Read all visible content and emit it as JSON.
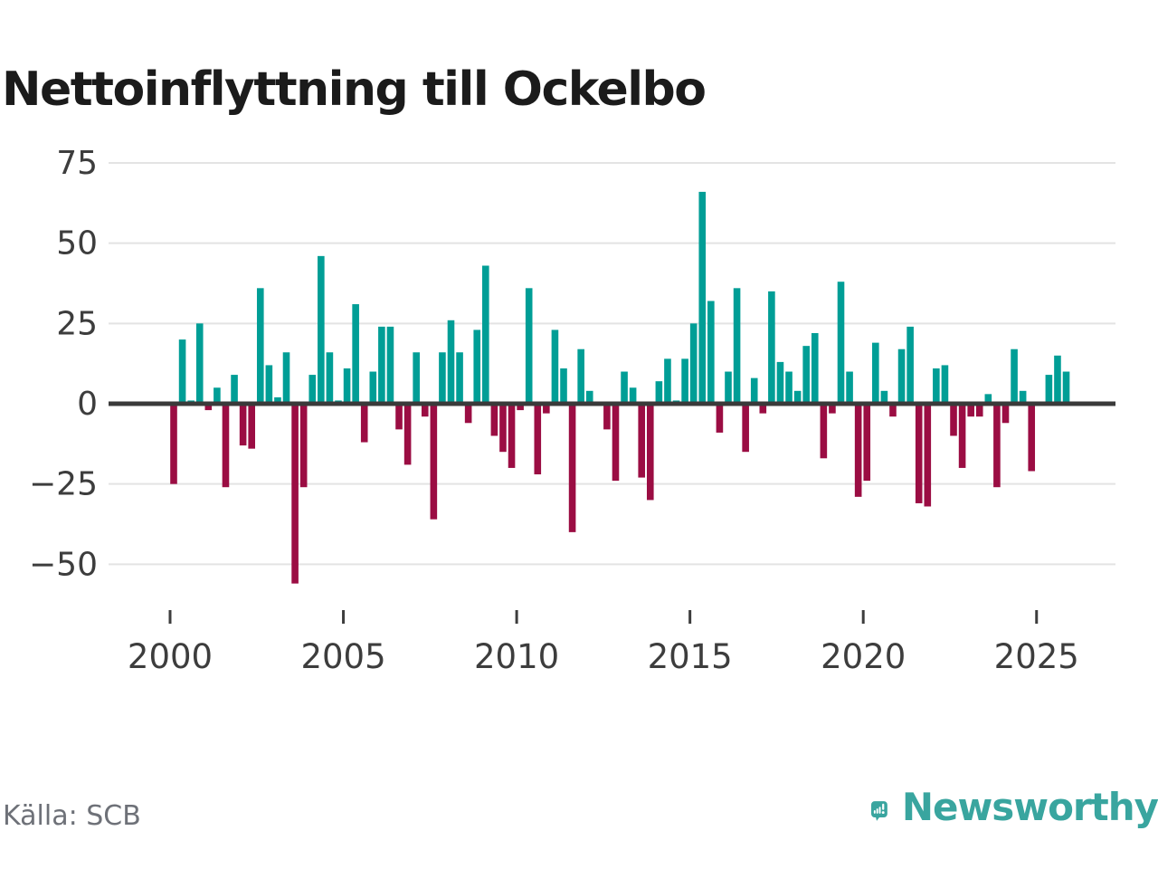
{
  "title": "Nettoinflyttning till Ockelbo",
  "source": {
    "label": "Källa: SCB"
  },
  "branding": {
    "name": "Newsworthy",
    "logo_icon": "speech-bubble-bar-chart-icon",
    "color": "#39a59f"
  },
  "chart_data": {
    "type": "bar",
    "title": "Nettoinflyttning till Ockelbo",
    "period": "quarterly",
    "start_year": 2000,
    "end_year": 2025,
    "grid": true,
    "y_ticks": [
      75,
      50,
      25,
      0,
      -25,
      -50
    ],
    "y_tick_labels": [
      "75",
      "50",
      "25",
      "0",
      "−25",
      "−50"
    ],
    "x_tick_years": [
      2000,
      2005,
      2010,
      2015,
      2020,
      2025
    ],
    "x_tick_labels": [
      "2000",
      "2005",
      "2010",
      "2015",
      "2020",
      "2025"
    ],
    "ylim": [
      -62,
      80
    ],
    "positive_color": "#009e96",
    "negative_color": "#9b0d43",
    "values": [
      -25,
      20,
      1,
      25,
      -2,
      5,
      -26,
      9,
      -13,
      -14,
      36,
      12,
      2,
      16,
      -56,
      -26,
      9,
      46,
      16,
      1,
      11,
      31,
      -12,
      10,
      24,
      24,
      -8,
      -19,
      16,
      -4,
      -36,
      16,
      26,
      16,
      -6,
      23,
      43,
      -10,
      -15,
      -20,
      -2,
      36,
      -22,
      -3,
      23,
      11,
      -40,
      17,
      4,
      0,
      -8,
      -24,
      10,
      5,
      -23,
      -30,
      7,
      14,
      1,
      14,
      25,
      66,
      32,
      -9,
      10,
      36,
      -15,
      8,
      -3,
      35,
      13,
      10,
      4,
      18,
      22,
      -17,
      -3,
      38,
      10,
      -29,
      -24,
      19,
      4,
      -4,
      17,
      24,
      -31,
      -32,
      11,
      12,
      -10,
      -20,
      -4,
      -4,
      3,
      -26,
      -6,
      17,
      4,
      -21,
      0,
      9,
      15,
      10
    ]
  }
}
